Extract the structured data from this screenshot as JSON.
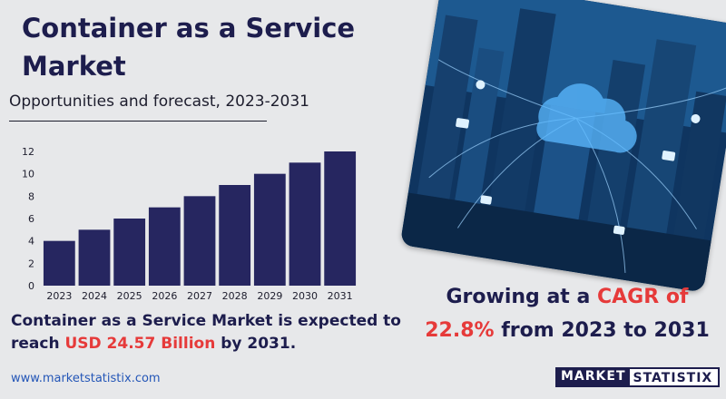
{
  "title": "Container as a Service Market",
  "subtitle": "Opportunities and forecast, 2023-2031",
  "expected": {
    "text_before": "Container as a Service Market is expected to reach ",
    "highlight": "USD 24.57 Billion",
    "text_after": " by 2031."
  },
  "cagr": {
    "text_before": "Growing at a ",
    "highlight1": "CAGR of",
    "highlight2": "22.8%",
    "text_after": " from 2023 to 2031"
  },
  "website": "www.marketstatistix.com",
  "logo": {
    "part1": "MARKET",
    "part2": "STATISTIX"
  },
  "colors": {
    "bar": "#262660",
    "accent": "#e63a3a",
    "title": "#1d1d4d",
    "link": "#2456b7"
  },
  "chart_data": {
    "type": "bar",
    "categories": [
      "2023",
      "2024",
      "2025",
      "2026",
      "2027",
      "2028",
      "2029",
      "2030",
      "2031"
    ],
    "values": [
      4,
      5,
      6,
      7,
      8,
      9,
      10,
      11,
      12
    ],
    "yticks": [
      0,
      2,
      4,
      6,
      8,
      10,
      12
    ],
    "ylim": [
      0,
      12
    ],
    "grid": false,
    "legend": "none"
  }
}
